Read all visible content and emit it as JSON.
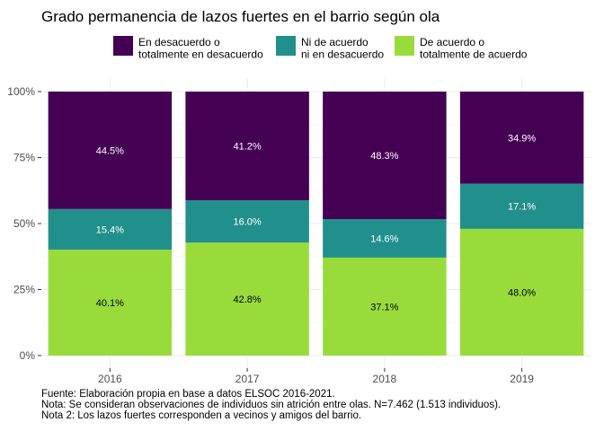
{
  "chart_data": {
    "type": "bar",
    "stacked": true,
    "percent": true,
    "title": "Grado permanencia de lazos fuertes en el barrio según ola",
    "categories": [
      "2016",
      "2017",
      "2018",
      "2019"
    ],
    "series": [
      {
        "name_lines": [
          "En desacuerdo o",
          "totalmente en desacuerdo"
        ],
        "color": "#440154",
        "values": [
          44.5,
          41.2,
          48.3,
          34.9
        ],
        "labels": [
          "44.5%",
          "41.2%",
          "48.3%",
          "34.9%"
        ],
        "label_color": "#ffffff"
      },
      {
        "name_lines": [
          "Ni de acuerdo",
          "ni en desacuerdo"
        ],
        "color": "#21908C",
        "values": [
          15.4,
          16.0,
          14.6,
          17.1
        ],
        "labels": [
          "15.4%",
          "16.0%",
          "14.6%",
          "17.1%"
        ],
        "label_color": "#ffffff"
      },
      {
        "name_lines": [
          "De acuerdo o",
          "totalmente de acuerdo"
        ],
        "color": "#9ADB3C",
        "values": [
          40.1,
          42.8,
          37.1,
          48.0
        ],
        "labels": [
          "40.1%",
          "42.8%",
          "37.1%",
          "48.0%"
        ],
        "label_color": "#000000"
      }
    ],
    "y_ticks": [
      "0%",
      "25%",
      "50%",
      "75%",
      "100%"
    ],
    "ylim": [
      0,
      100
    ],
    "grid": true,
    "legend_position": "top",
    "captions": [
      "Fuente: Elaboración propia en base a datos ELSOC 2016-2021.",
      "Nota: Se consideran observaciones de individuos sin atrición entre olas. N=7.462 (1.513 individuos).",
      "Nota 2: Los lazos fuertes corresponden a vecinos y amigos del barrio."
    ]
  }
}
